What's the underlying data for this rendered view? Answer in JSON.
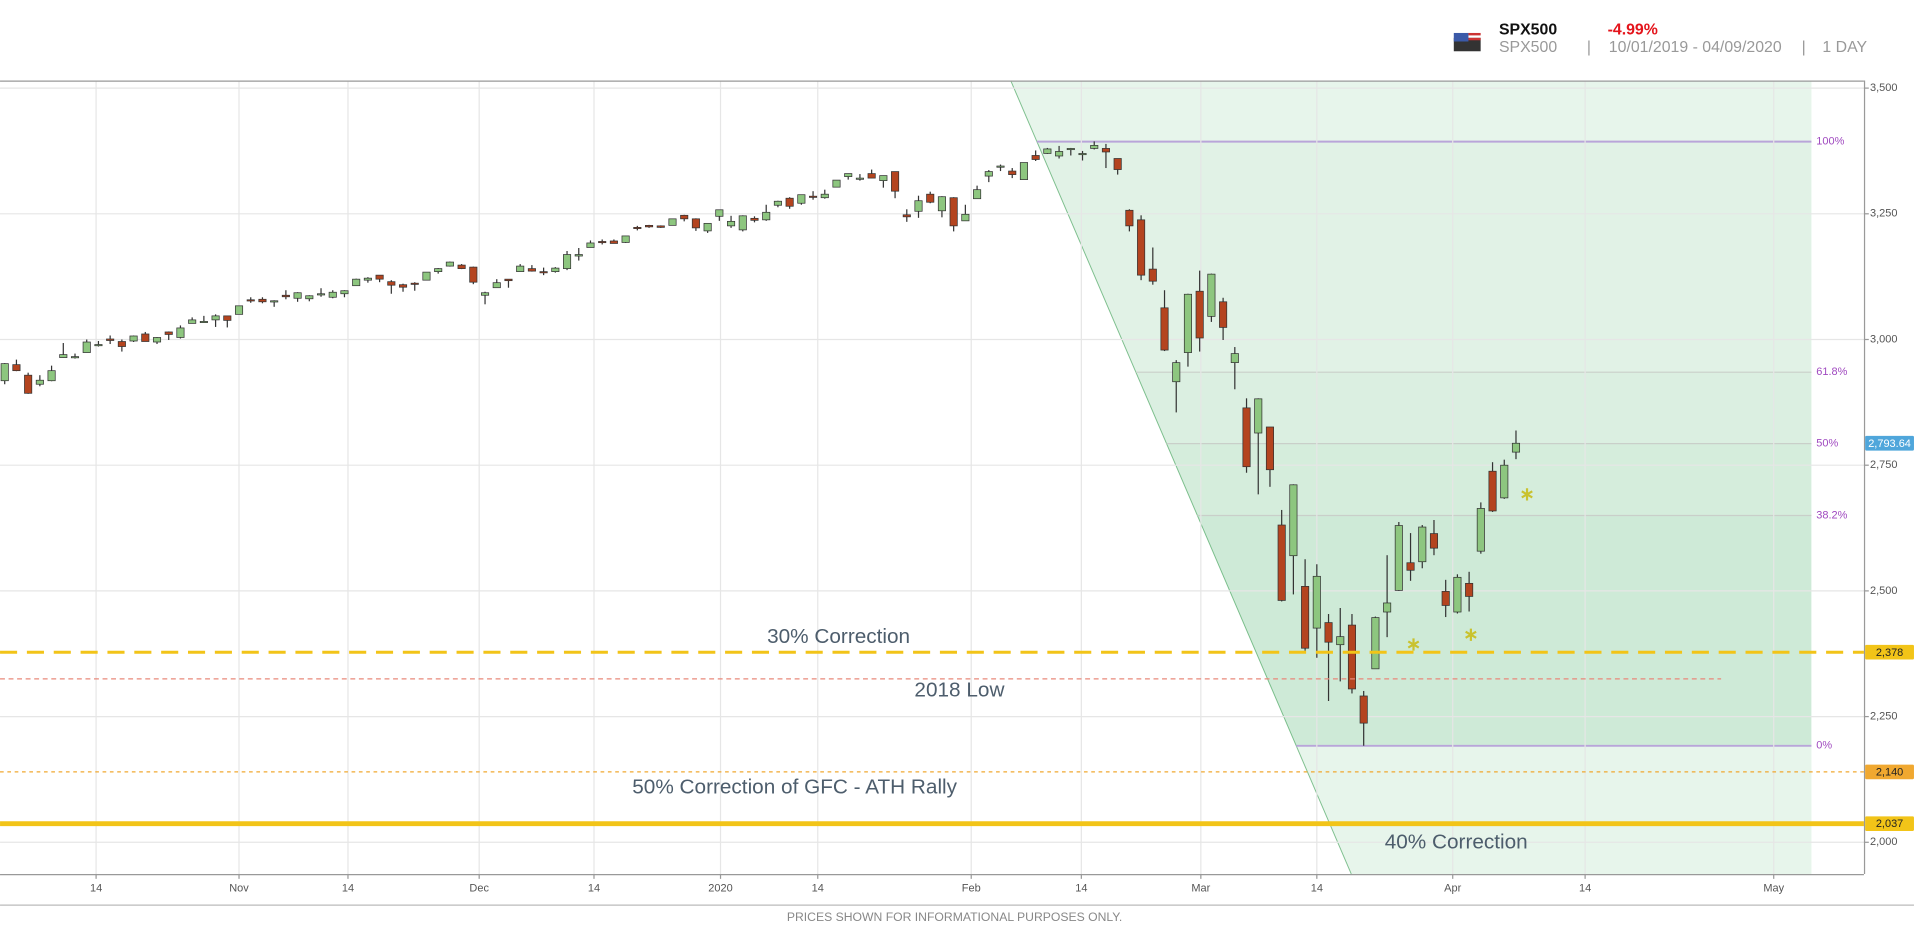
{
  "header": {
    "symbol": "SPX500",
    "change": "-4.99%",
    "name": "SPX500",
    "separator": "|",
    "range": "10/01/2019 - 04/09/2020",
    "interval": "1 DAY"
  },
  "footer": "PRICES SHOWN FOR INFORMATIONAL PURPOSES ONLY.",
  "chart_data": {
    "type": "candlestick",
    "up_color": "#8dc67f",
    "down_color": "#b4441f",
    "grid": true,
    "xlim": [
      -0.4,
      158.7
    ],
    "xticks": [
      {
        "value": 7.8,
        "label": "14"
      },
      {
        "value": 20,
        "label": "Nov"
      },
      {
        "value": 29.3,
        "label": "14"
      },
      {
        "value": 40.5,
        "label": "Dec"
      },
      {
        "value": 50.3,
        "label": "14"
      },
      {
        "value": 61.1,
        "label": "2020"
      },
      {
        "value": 69.4,
        "label": "14"
      },
      {
        "value": 82.5,
        "label": "Feb"
      },
      {
        "value": 91.9,
        "label": "14"
      },
      {
        "value": 102.1,
        "label": "Mar"
      },
      {
        "value": 112,
        "label": "14"
      },
      {
        "value": 123.6,
        "label": "Apr"
      },
      {
        "value": 134.9,
        "label": "14"
      },
      {
        "value": 151,
        "label": "May"
      }
    ],
    "ylim": [
      1937,
      3515
    ],
    "yticks": [
      {
        "value": 2000,
        "label": "2,000"
      },
      {
        "value": 2250,
        "label": "2,250"
      },
      {
        "value": 2500,
        "label": "2,500"
      },
      {
        "value": 2750,
        "label": "2,750"
      },
      {
        "value": 3000,
        "label": "3,000"
      },
      {
        "value": 3250,
        "label": "3,250"
      },
      {
        "value": 3500,
        "label": "3,500"
      }
    ],
    "open": [
      2918,
      2950,
      2929,
      2911,
      2918,
      2964,
      2966,
      2974,
      2990,
      3001,
      2996,
      2997,
      3011,
      2995,
      3015,
      3004,
      3032,
      3036,
      3039,
      3047,
      3050,
      3079,
      3080,
      3075,
      3088,
      3082,
      3081,
      3090,
      3084,
      3091,
      3107,
      3118,
      3128,
      3115,
      3109,
      3112,
      3118,
      3135,
      3146,
      3148,
      3144,
      3088,
      3103,
      3120,
      3135,
      3141,
      3135,
      3135,
      3141,
      3166,
      3183,
      3195,
      3196,
      3193,
      3223,
      3227,
      3226,
      3227,
      3247,
      3240,
      3216,
      3245,
      3226,
      3218,
      3241,
      3238,
      3267,
      3281,
      3271,
      3285,
      3282,
      3303,
      3324,
      3321,
      3330,
      3316,
      3334,
      3248,
      3255,
      3289,
      3256,
      3282,
      3236,
      3280,
      3325,
      3345,
      3335,
      3318,
      3366,
      3370,
      3365,
      3378,
      3370,
      3380,
      3380,
      3360,
      3257,
      3238,
      3140,
      3063,
      2916,
      2974,
      3096,
      3046,
      3075,
      2954,
      2864,
      2814,
      2826,
      2631,
      2570,
      2509,
      2426,
      2437,
      2393,
      2432,
      2291,
      2345,
      2458,
      2501,
      2556,
      2558,
      2614,
      2499,
      2458,
      2515,
      2579,
      2738,
      2685,
      2776
    ],
    "high": [
      2953,
      2960,
      2934,
      2929,
      2948,
      2993,
      2972,
      3000,
      2997,
      3008,
      3000,
      3008,
      3015,
      3005,
      3016,
      3028,
      3044,
      3047,
      3050,
      3047,
      3067,
      3084,
      3084,
      3078,
      3098,
      3094,
      3088,
      3102,
      3098,
      3098,
      3121,
      3124,
      3128,
      3118,
      3111,
      3114,
      3134,
      3142,
      3155,
      3150,
      3145,
      3095,
      3120,
      3120,
      3150,
      3148,
      3143,
      3144,
      3176,
      3182,
      3197,
      3199,
      3199,
      3206,
      3226,
      3228,
      3227,
      3240,
      3248,
      3241,
      3231,
      3258,
      3246,
      3247,
      3245,
      3268,
      3276,
      3283,
      3288,
      3295,
      3298,
      3317,
      3330,
      3329,
      3338,
      3326,
      3334,
      3259,
      3286,
      3294,
      3285,
      3283,
      3268,
      3306,
      3337,
      3348,
      3341,
      3352,
      3376,
      3381,
      3385,
      3381,
      3375,
      3394,
      3389,
      3360,
      3259,
      3247,
      3183,
      3098,
      2959,
      3091,
      3137,
      3131,
      3083,
      2985,
      2883,
      2883,
      2826,
      2661,
      2712,
      2563,
      2553,
      2454,
      2466,
      2454,
      2301,
      2449,
      2571,
      2637,
      2615,
      2631,
      2641,
      2522,
      2533,
      2538,
      2676,
      2756,
      2761,
      2819
    ],
    "low": [
      2911,
      2937,
      2892,
      2907,
      2917,
      2964,
      2962,
      2974,
      2986,
      2991,
      2976,
      2995,
      2996,
      2991,
      2999,
      3002,
      3032,
      3034,
      3025,
      3024,
      3050,
      3073,
      3072,
      3065,
      3080,
      3075,
      3076,
      3085,
      3082,
      3084,
      3107,
      3113,
      3114,
      3091,
      3095,
      3097,
      3118,
      3131,
      3145,
      3140,
      3110,
      3070,
      3103,
      3103,
      3135,
      3135,
      3128,
      3133,
      3138,
      3157,
      3183,
      3189,
      3191,
      3192,
      3217,
      3222,
      3222,
      3227,
      3235,
      3216,
      3212,
      3236,
      3222,
      3215,
      3233,
      3236,
      3263,
      3260,
      3268,
      3278,
      3280,
      3303,
      3318,
      3316,
      3321,
      3302,
      3281,
      3234,
      3242,
      3271,
      3243,
      3215,
      3236,
      3280,
      3313,
      3335,
      3321,
      3318,
      3355,
      3369,
      3360,
      3366,
      3356,
      3378,
      3341,
      3328,
      3215,
      3118,
      3109,
      2977,
      2855,
      2946,
      2976,
      3035,
      2999,
      2901,
      2735,
      2692,
      2707,
      2479,
      2493,
      2381,
      2367,
      2281,
      2320,
      2296,
      2192,
      2345,
      2408,
      2500,
      2520,
      2545,
      2571,
      2448,
      2455,
      2459,
      2574,
      2657,
      2683,
      2762
    ],
    "close": [
      2952,
      2938,
      2893,
      2919,
      2938,
      2970,
      2966,
      2995,
      2990,
      2998,
      2986,
      3007,
      2996,
      3004,
      3010,
      3023,
      3039,
      3036,
      3047,
      3038,
      3067,
      3078,
      3075,
      3077,
      3085,
      3093,
      3087,
      3091,
      3094,
      3097,
      3120,
      3122,
      3120,
      3108,
      3104,
      3110,
      3134,
      3141,
      3154,
      3141,
      3114,
      3093,
      3113,
      3117,
      3146,
      3136,
      3133,
      3142,
      3169,
      3169,
      3192,
      3193,
      3191,
      3206,
      3221,
      3224,
      3223,
      3240,
      3240,
      3222,
      3231,
      3258,
      3235,
      3246,
      3237,
      3253,
      3275,
      3265,
      3288,
      3283,
      3289,
      3317,
      3330,
      3321,
      3321,
      3326,
      3295,
      3244,
      3276,
      3273,
      3284,
      3226,
      3249,
      3298,
      3334,
      3345,
      3328,
      3352,
      3358,
      3379,
      3374,
      3380,
      3370,
      3386,
      3373,
      3338,
      3226,
      3128,
      3116,
      2979,
      2954,
      3090,
      3003,
      3130,
      3024,
      2972,
      2747,
      2882,
      2741,
      2481,
      2711,
      2386,
      2529,
      2398,
      2409,
      2305,
      2237,
      2447,
      2476,
      2630,
      2541,
      2627,
      2585,
      2471,
      2527,
      2489,
      2664,
      2659,
      2750,
      2793.64
    ],
    "last_price": {
      "value": 2793.64,
      "label": "2,793.64",
      "color": "#4fa6db"
    },
    "fib_levels": [
      {
        "value": 3393.52,
        "label": "100%"
      },
      {
        "value": 2935,
        "label": "61.8%"
      },
      {
        "value": 2793,
        "label": "50%"
      },
      {
        "value": 2650,
        "label": "38.2%"
      },
      {
        "value": 2191.86,
        "label": "0%"
      }
    ],
    "levels": [
      {
        "label": "30% Correction",
        "value": 2378,
        "value_label": "2,378",
        "color": "#f2c418",
        "style": "dashed"
      },
      {
        "label": "2018 Low",
        "value": 2325,
        "color": "#e8887a",
        "style": "fine-dashed"
      },
      {
        "label": "50% Correction of GFC - ATH Rally",
        "value": 2140,
        "value_label": "2,140",
        "color": "#f0a830",
        "style": "dotted"
      },
      {
        "label": "40% Correction",
        "value": 2037,
        "value_label": "2,037",
        "color": "#f2c418",
        "style": "solid"
      }
    ]
  }
}
